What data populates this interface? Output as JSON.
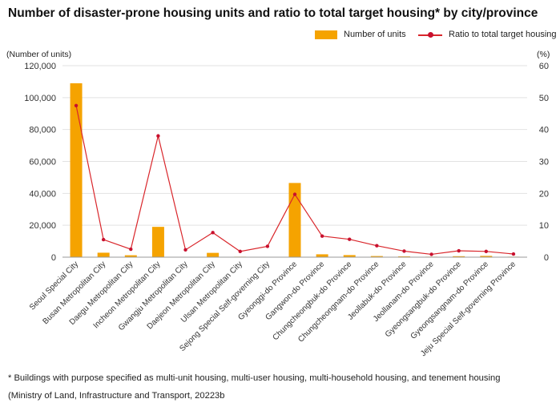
{
  "chart_data": {
    "type": "bar+line",
    "title": "Number of disaster-prone housing units and ratio to total target housing* by city/province",
    "ylabel_left": "(Number of units)",
    "ylabel_right": "(%)",
    "ylim_left": [
      0,
      120000
    ],
    "ylim_right": [
      0,
      60
    ],
    "yticks_left": [
      "0",
      "20,000",
      "40,000",
      "60,000",
      "80,000",
      "100,000",
      "120,000"
    ],
    "yticks_right": [
      "0",
      "10",
      "20",
      "30",
      "40",
      "50",
      "60"
    ],
    "categories": [
      "Seoul Special City",
      "Busan Metropolitan City",
      "Daegu Metropolitan City",
      "Incheon Metropolitan City",
      "Gwangju Metropolitan City",
      "Daejeon Metropolitan City",
      "Ulsan Metropolitan City",
      "Sejong Special Self-governing City",
      "Gyeonggi-do Province",
      "Gangwon-do Province",
      "Chungcheongbuk-do Province",
      "Chungcheongnam-do Province",
      "Jeollabuk-do Province",
      "Jeollanam-do Province",
      "Gyeongsangbuk-do Province",
      "Gyeongsangnam-do Province",
      "Jeju Special Self-governing Province"
    ],
    "series": [
      {
        "name": "Number of units",
        "kind": "bar",
        "color": "#F5A300",
        "axis": "left",
        "values": [
          109000,
          2800,
          1200,
          19000,
          200,
          2700,
          300,
          100,
          46500,
          1800,
          1300,
          700,
          500,
          300,
          600,
          800,
          300
        ]
      },
      {
        "name": "Ratio to total target housing",
        "kind": "line",
        "color": "#D9262B",
        "axis": "right",
        "values": [
          47.5,
          5.5,
          2.5,
          38.0,
          2.3,
          7.7,
          1.8,
          3.4,
          19.7,
          6.6,
          5.6,
          3.6,
          1.9,
          0.9,
          2.0,
          1.8,
          1.0
        ]
      }
    ],
    "grid": true,
    "legend": "top-right"
  },
  "footnotes": [
    "* Buildings with purpose specified as multi-unit housing, multi-user housing, multi-household housing, and tenement housing",
    "(Ministry of Land, Infrastructure and Transport, 20223b"
  ]
}
